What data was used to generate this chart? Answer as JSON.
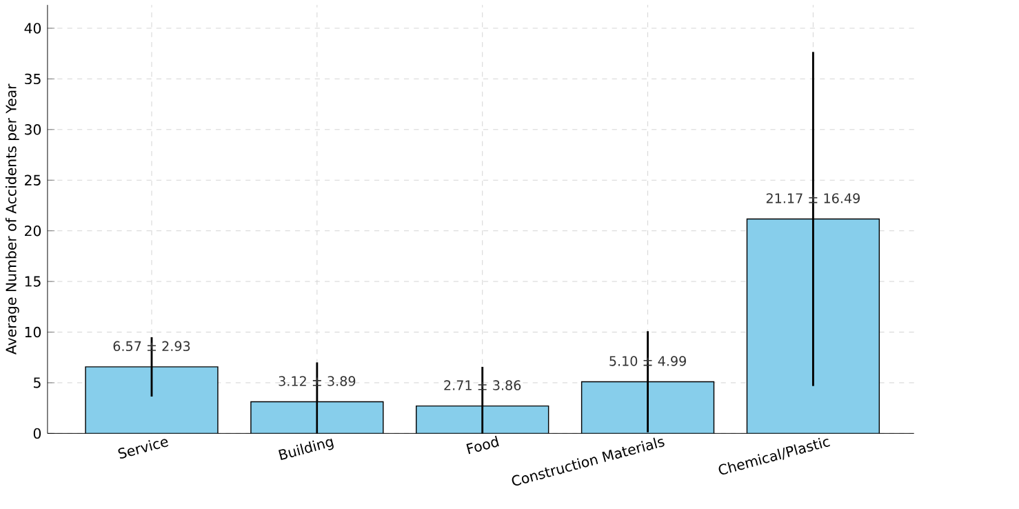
{
  "chart_data": {
    "type": "bar",
    "ylabel": "Average Number of Accidents per Year",
    "categories": [
      "Service",
      "Building",
      "Food",
      "Construction Materials",
      "Chemical/Plastic"
    ],
    "values": [
      6.57,
      3.12,
      2.71,
      5.1,
      21.17
    ],
    "errors": [
      2.93,
      3.89,
      3.86,
      4.99,
      16.49
    ],
    "value_labels": [
      "6.57 ± 2.93",
      "3.12 ± 3.89",
      "2.71 ± 3.86",
      "5.10 ± 4.99",
      "21.17 ± 16.49"
    ],
    "color": "#87ceeb",
    "ylim": [
      0,
      42.3
    ],
    "yticks": [
      0,
      5,
      10,
      15,
      20,
      25,
      30,
      35,
      40
    ],
    "grid": true
  }
}
